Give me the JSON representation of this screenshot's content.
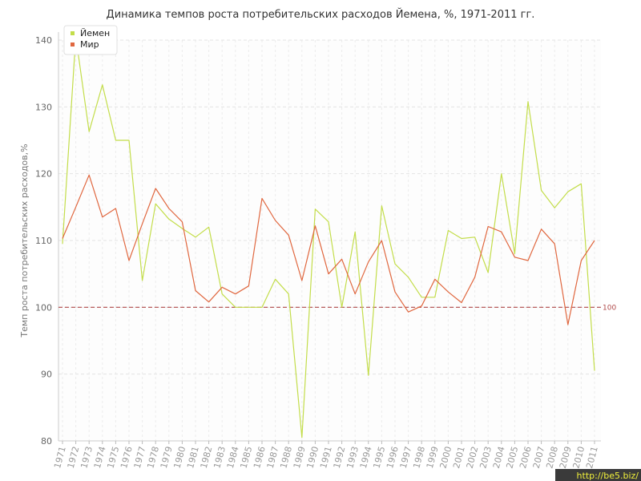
{
  "chart_data": {
    "type": "line",
    "title": "Динамика темпов роста потребительских расходов Йемена, %, 1971-2011 гг.",
    "xlabel": "",
    "ylabel": "Темп роста потребительских расходов,%",
    "ylim": [
      80,
      140
    ],
    "yticks": [
      80,
      90,
      100,
      110,
      120,
      130,
      140
    ],
    "grid": true,
    "legend_position": "top-left",
    "x": [
      1971,
      1972,
      1973,
      1974,
      1975,
      1976,
      1977,
      1978,
      1979,
      1980,
      1981,
      1982,
      1983,
      1984,
      1985,
      1986,
      1987,
      1988,
      1989,
      1990,
      1991,
      1992,
      1993,
      1994,
      1995,
      1996,
      1997,
      1998,
      1999,
      2000,
      2001,
      2002,
      2003,
      2004,
      2005,
      2006,
      2007,
      2008,
      2009,
      2010,
      2011
    ],
    "series": [
      {
        "name": "Йемен",
        "color": "#c3dd4a",
        "values": [
          109.5,
          140.5,
          126.3,
          133.3,
          125.0,
          125.0,
          104.0,
          115.5,
          113.2,
          111.8,
          110.5,
          112.0,
          102.0,
          100.0,
          100.0,
          100.0,
          104.2,
          102.0,
          80.5,
          114.7,
          112.8,
          100.0,
          111.3,
          89.8,
          115.2,
          106.5,
          104.5,
          101.5,
          101.5,
          111.5,
          110.3,
          110.5,
          105.2,
          120.0,
          108.0,
          130.8,
          117.5,
          114.9,
          117.3,
          118.5,
          90.5
        ]
      },
      {
        "name": "Мир",
        "color": "#e0673f",
        "values": [
          110.3,
          115.0,
          119.8,
          113.5,
          114.8,
          107.0,
          112.5,
          117.8,
          114.8,
          112.8,
          102.5,
          100.8,
          103.0,
          102.0,
          103.2,
          116.3,
          113.0,
          110.8,
          104.0,
          112.2,
          105.0,
          107.2,
          102.0,
          106.8,
          110.0,
          102.3,
          99.3,
          100.2,
          104.2,
          102.3,
          100.7,
          104.5,
          112.1,
          111.3,
          107.5,
          107.0,
          111.7,
          109.5,
          97.4,
          107.0,
          110.0
        ]
      }
    ],
    "reference_line": {
      "value": 100,
      "label": "100",
      "color": "#b04a4a"
    }
  },
  "watermark": "http://be5.biz/"
}
